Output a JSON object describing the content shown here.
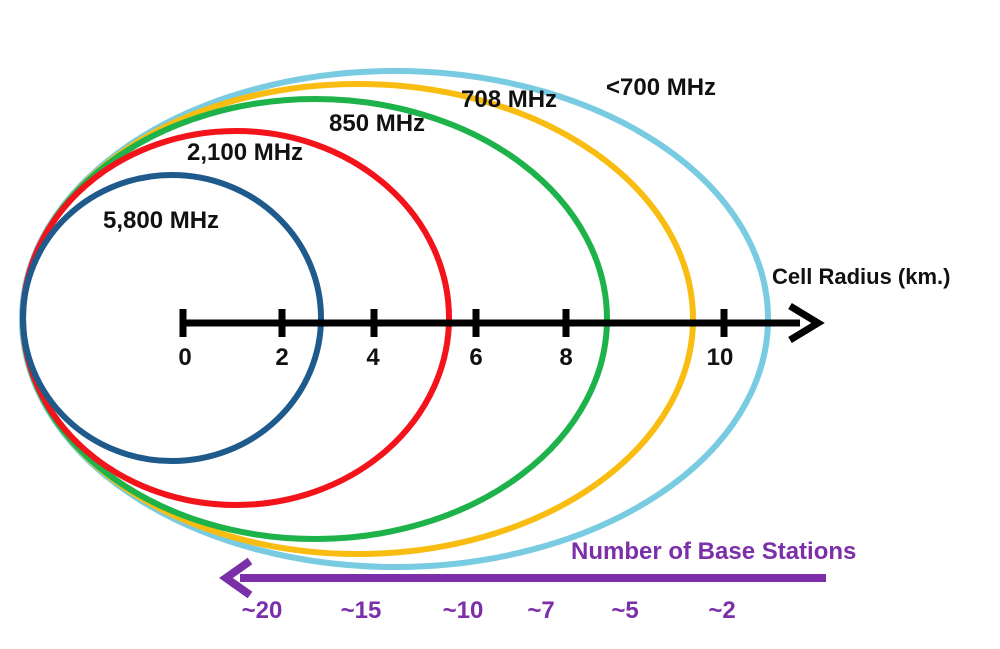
{
  "bands": [
    {
      "label": "5,800 MHz",
      "color": "#1f5a8c"
    },
    {
      "label": "2,100 MHz",
      "color": "#f2141a"
    },
    {
      "label": "850 MHz",
      "color": "#1db24a"
    },
    {
      "label": "708 MHz",
      "color": "#f9bd12"
    },
    {
      "label": "<700 MHz",
      "color": "#78cbe0"
    }
  ],
  "axis": {
    "title": "Cell Radius (km.)",
    "ticks": [
      "0",
      "2",
      "4",
      "6",
      "8",
      "10"
    ]
  },
  "base_stations": {
    "title": "Number of Base Stations",
    "color": "#7b2fa8",
    "labels": [
      "~20",
      "~15",
      "~10",
      "~7",
      "~5",
      "~2"
    ]
  }
}
